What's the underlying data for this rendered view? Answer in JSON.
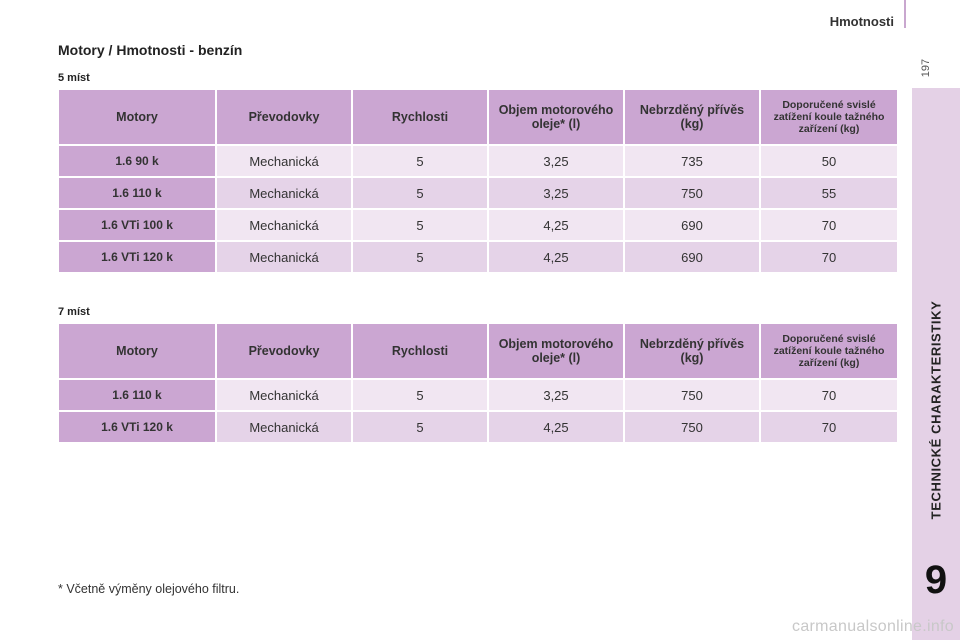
{
  "header": {
    "section_title": "Hmotnosti",
    "page_number": "197"
  },
  "sidebar": {
    "chapter_label": "TECHNICKÉ CHARAKTERISTIKY",
    "chapter_number": "9"
  },
  "page_title": "Motory / Hmotnosti - benzín",
  "columns": [
    "Motory",
    "Převodovky",
    "Rychlosti",
    "Objem motorového oleje* (l)",
    "Nebrzděný přívěs (kg)",
    "Doporučené svislé zatížení koule tažného zařízení (kg)"
  ],
  "table_5": {
    "label": "5 míst",
    "rows": [
      [
        "1.6 90 k",
        "Mechanická",
        "5",
        "3,25",
        "735",
        "50"
      ],
      [
        "1.6 110 k",
        "Mechanická",
        "5",
        "3,25",
        "750",
        "55"
      ],
      [
        "1.6 VTi 100 k",
        "Mechanická",
        "5",
        "4,25",
        "690",
        "70"
      ],
      [
        "1.6 VTi 120 k",
        "Mechanická",
        "5",
        "4,25",
        "690",
        "70"
      ]
    ]
  },
  "table_7": {
    "label": "7 míst",
    "rows": [
      [
        "1.6 110 k",
        "Mechanická",
        "5",
        "3,25",
        "750",
        "70"
      ],
      [
        "1.6 VTi 120 k",
        "Mechanická",
        "5",
        "4,25",
        "750",
        "70"
      ]
    ]
  },
  "footnote": "* Včetně výměny olejového filtru.",
  "watermark": "carmanualsonline.info"
}
